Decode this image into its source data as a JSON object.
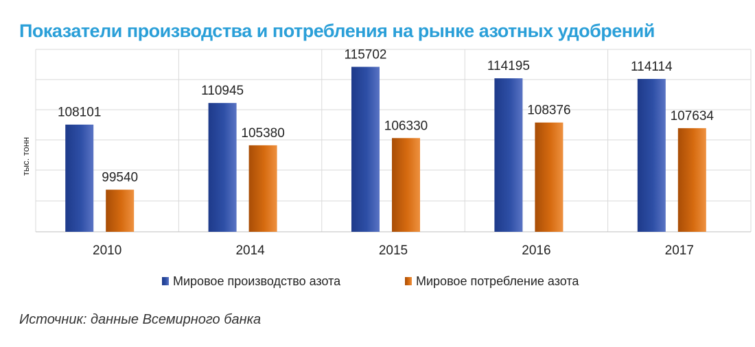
{
  "chart_data": {
    "type": "bar",
    "title": "Показатели производства и потребления на рынке азотных удобрений",
    "ylabel": "тыс. тонн",
    "xlabel": "",
    "categories": [
      "2010",
      "2014",
      "2015",
      "2016",
      "2017"
    ],
    "series": [
      {
        "name": "Мировое производство азота",
        "values": [
          108101,
          110945,
          115702,
          114195,
          114114
        ],
        "color": "#2e4fa6"
      },
      {
        "name": "Мировое потребление азота",
        "values": [
          99540,
          105380,
          106330,
          108376,
          107634
        ],
        "color": "#d66b10"
      }
    ],
    "ylim": [
      94000,
      118000
    ],
    "grid": true,
    "legend_position": "bottom"
  },
  "source_note": "Источник: данные Всемирного банка"
}
